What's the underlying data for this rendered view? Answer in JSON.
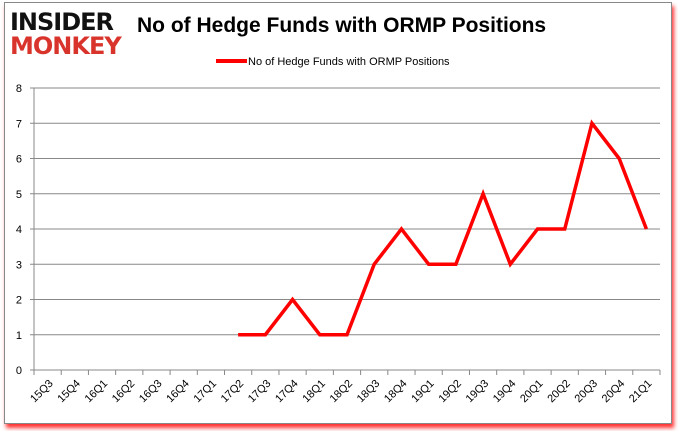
{
  "logo": {
    "line1": "INSIDER",
    "line2": "MONKEY"
  },
  "chart_data": {
    "type": "line",
    "title": "No of Hedge Funds with ORMP Positions",
    "categories": [
      "15Q3",
      "15Q4",
      "16Q1",
      "16Q2",
      "16Q3",
      "16Q4",
      "17Q1",
      "17Q2",
      "17Q3",
      "17Q4",
      "18Q1",
      "18Q2",
      "18Q3",
      "18Q4",
      "19Q1",
      "19Q2",
      "19Q3",
      "19Q4",
      "20Q1",
      "20Q2",
      "20Q3",
      "20Q4",
      "21Q1"
    ],
    "series": [
      {
        "name": "No of Hedge Funds with ORMP Positions",
        "color": "#ff0000",
        "values": [
          null,
          null,
          null,
          null,
          null,
          null,
          null,
          1,
          1,
          2,
          1,
          1,
          3,
          4,
          3,
          3,
          5,
          3,
          4,
          4,
          7,
          6,
          4
        ]
      }
    ],
    "ylim": [
      0,
      8
    ],
    "yticks": [
      0,
      1,
      2,
      3,
      4,
      5,
      6,
      7,
      8
    ],
    "grid": true,
    "legend": "top"
  }
}
